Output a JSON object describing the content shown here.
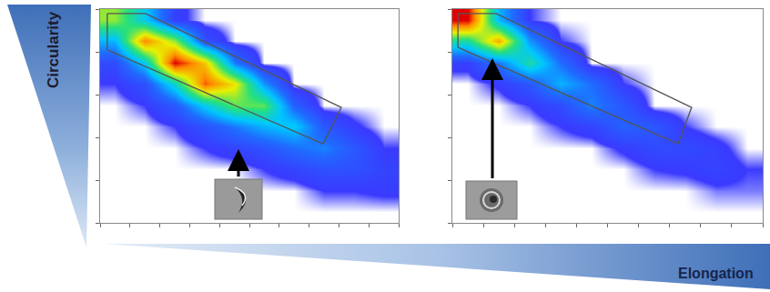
{
  "chart_data": [
    {
      "type": "heatmap",
      "x_label": "Elongation",
      "y_label": "Circularity",
      "x": [
        0.5,
        1.5,
        2.5,
        3.5,
        4.5,
        5.5,
        6.5,
        7.5,
        8.5,
        9.5
      ],
      "y": [
        0.5,
        1.5,
        2.5,
        3.5,
        4.5,
        5.5,
        6.5,
        7.5,
        8.5,
        9.5
      ],
      "z": [
        [
          0,
          0,
          0,
          0,
          0,
          0,
          0,
          0,
          0,
          0
        ],
        [
          0,
          0,
          0,
          0,
          0,
          0,
          0,
          3,
          3,
          4
        ],
        [
          0,
          0,
          0,
          0,
          0,
          3,
          6,
          10,
          10,
          6
        ],
        [
          0,
          0,
          0,
          3,
          6,
          10,
          18,
          22,
          12,
          3
        ],
        [
          0,
          0,
          3,
          10,
          20,
          30,
          35,
          12,
          4,
          0
        ],
        [
          0,
          3,
          12,
          35,
          55,
          55,
          15,
          0,
          0,
          0
        ],
        [
          3,
          10,
          40,
          90,
          70,
          25,
          0,
          0,
          0,
          0
        ],
        [
          8,
          35,
          100,
          75,
          20,
          0,
          0,
          0,
          0,
          0
        ],
        [
          30,
          85,
          60,
          10,
          0,
          0,
          0,
          0,
          0,
          0
        ],
        [
          60,
          35,
          5,
          0,
          0,
          0,
          0,
          0,
          0,
          0
        ]
      ],
      "gate": {
        "x": [
          0.24,
          1.52,
          8.08,
          7.47,
          0.24
        ],
        "y": [
          9.79,
          9.79,
          5.4,
          3.7,
          8.09
        ]
      },
      "xlim": [
        0,
        10
      ],
      "ylim": [
        0,
        10
      ],
      "xticks": [
        0,
        1,
        2,
        3,
        4,
        5,
        6,
        7,
        8,
        9,
        10
      ],
      "yticks": [
        0,
        2,
        4,
        6,
        8,
        10
      ],
      "tick_labels": false
    },
    {
      "type": "heatmap",
      "x": [
        0.5,
        1.5,
        2.5,
        3.5,
        4.5,
        5.5,
        6.5,
        7.5,
        8.5,
        9.5
      ],
      "y": [
        0.5,
        1.5,
        2.5,
        3.5,
        4.5,
        5.5,
        6.5,
        7.5,
        8.5,
        9.5
      ],
      "z": [
        [
          0,
          0,
          0,
          0,
          0,
          0,
          0,
          0,
          0,
          0
        ],
        [
          0,
          0,
          0,
          0,
          0,
          0,
          0,
          0,
          2,
          2
        ],
        [
          0,
          0,
          0,
          0,
          0,
          0,
          3,
          4,
          6,
          3
        ],
        [
          0,
          0,
          0,
          0,
          0,
          4,
          8,
          8,
          5,
          0
        ],
        [
          0,
          0,
          0,
          3,
          6,
          15,
          12,
          3,
          0,
          0
        ],
        [
          0,
          0,
          3,
          8,
          22,
          12,
          0,
          0,
          0,
          0
        ],
        [
          0,
          4,
          12,
          30,
          18,
          3,
          0,
          0,
          0,
          0
        ],
        [
          5,
          20,
          45,
          18,
          0,
          0,
          0,
          0,
          0,
          0
        ],
        [
          45,
          80,
          25,
          3,
          0,
          0,
          0,
          0,
          0,
          0
        ],
        [
          100,
          30,
          3,
          0,
          0,
          0,
          0,
          0,
          0,
          0
        ]
      ],
      "gate": {
        "x": [
          0.18,
          1.41,
          7.71,
          7.27,
          0.18
        ],
        "y": [
          9.79,
          9.79,
          5.4,
          3.7,
          8.21
        ]
      },
      "xlim": [
        0,
        10
      ],
      "ylim": [
        0,
        10
      ],
      "xticks": [
        0,
        1,
        2,
        3,
        4,
        5,
        6,
        7,
        8,
        9,
        10
      ],
      "yticks": [
        0,
        2,
        4,
        6,
        8,
        10
      ],
      "tick_labels": false
    }
  ]
}
